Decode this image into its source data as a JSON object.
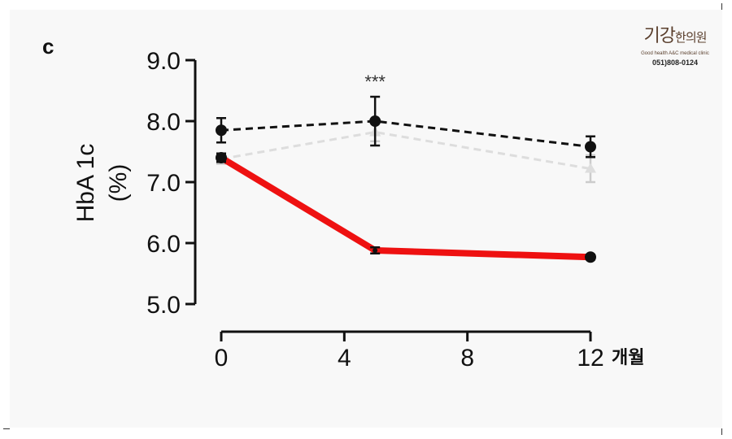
{
  "panel_letter": "c",
  "logo": {
    "mark_big": "기강",
    "mark_small": "한의원",
    "tagline": "Good health A&C medical clinic",
    "phone": "051)808-0124"
  },
  "chart_data": {
    "type": "line",
    "ylabel_line1": "HbA 1c",
    "ylabel_line2": "(%)",
    "x_unit_label": "개월",
    "ylim": [
      5.0,
      9.0
    ],
    "y_ticks": [
      5.0,
      6.0,
      7.0,
      8.0,
      9.0
    ],
    "y_tick_labels": [
      "5.0",
      "6.0",
      "7.0",
      "8.0",
      "9.0"
    ],
    "xlim": [
      0,
      12
    ],
    "x_ticks": [
      0,
      4,
      8,
      12
    ],
    "x_tick_labels": [
      "0",
      "4",
      "8",
      "12"
    ],
    "grid": false,
    "annotations": [
      {
        "text": "***",
        "x": 5,
        "y": 8.55
      }
    ],
    "series": [
      {
        "color": "#ee1111",
        "style": "solid-thick",
        "marker": "circle",
        "x": [
          0,
          5,
          12
        ],
        "y": [
          7.4,
          5.88,
          5.77
        ],
        "err": [
          0.07,
          0.05,
          0.04
        ]
      },
      {
        "color": "#111111",
        "style": "dashed",
        "marker": "circle",
        "x": [
          0,
          5,
          12
        ],
        "y": [
          7.85,
          8.0,
          7.58
        ],
        "err": [
          0.2,
          0.4,
          0.17
        ]
      },
      {
        "color": "#dddddd",
        "style": "dashed",
        "marker": "triangle",
        "x": [
          0,
          5,
          12
        ],
        "y": [
          7.38,
          7.82,
          7.22
        ],
        "err": [
          0.08,
          0.15,
          0.22
        ]
      }
    ]
  }
}
